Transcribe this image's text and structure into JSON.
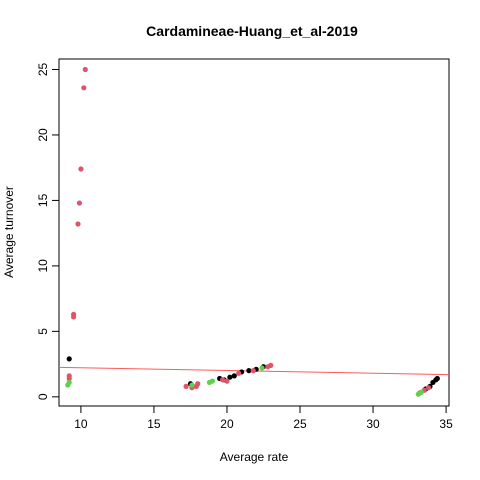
{
  "chart_data": {
    "type": "scatter",
    "title": "Cardamineae-Huang_et_al-2019",
    "xlabel": "Average rate",
    "ylabel": "Average turnover",
    "xlim": [
      8.5,
      35.2
    ],
    "ylim": [
      -0.7,
      25.8
    ],
    "x_ticks": [
      10,
      15,
      20,
      25,
      30,
      35
    ],
    "y_ticks": [
      0,
      5,
      10,
      15,
      20,
      25
    ],
    "grid": false,
    "colors": {
      "black": "#000000",
      "red": "#DF536B",
      "green": "#61D04F",
      "trend": "#FF5A5A"
    },
    "series": [
      {
        "color": "black",
        "points": [
          [
            9.2,
            2.9
          ],
          [
            17.5,
            1.0
          ],
          [
            19.5,
            1.4
          ],
          [
            19.8,
            1.3
          ],
          [
            20.2,
            1.5
          ],
          [
            20.5,
            1.6
          ],
          [
            21.0,
            1.9
          ],
          [
            21.5,
            2.0
          ],
          [
            22.0,
            2.1
          ],
          [
            22.5,
            2.3
          ],
          [
            33.6,
            0.6
          ],
          [
            33.9,
            0.8
          ],
          [
            34.1,
            1.1
          ],
          [
            34.3,
            1.3
          ],
          [
            34.4,
            1.4
          ]
        ]
      },
      {
        "color": "red",
        "points": [
          [
            10.3,
            25.0
          ],
          [
            10.2,
            23.6
          ],
          [
            10.0,
            17.4
          ],
          [
            9.9,
            14.8
          ],
          [
            9.8,
            13.2
          ],
          [
            9.5,
            6.3
          ],
          [
            9.5,
            6.1
          ],
          [
            9.2,
            1.6
          ],
          [
            9.2,
            1.4
          ],
          [
            17.2,
            0.8
          ],
          [
            17.6,
            0.7
          ],
          [
            17.9,
            0.8
          ],
          [
            18.0,
            1.0
          ],
          [
            19.7,
            1.3
          ],
          [
            20.0,
            1.2
          ],
          [
            20.8,
            1.8
          ],
          [
            21.8,
            2.0
          ],
          [
            22.8,
            2.3
          ],
          [
            23.0,
            2.4
          ],
          [
            33.2,
            0.3
          ],
          [
            33.5,
            0.5
          ],
          [
            33.8,
            0.7
          ]
        ]
      },
      {
        "color": "green",
        "points": [
          [
            9.1,
            0.9
          ],
          [
            9.2,
            1.1
          ],
          [
            17.6,
            0.9
          ],
          [
            18.8,
            1.1
          ],
          [
            19.0,
            1.2
          ],
          [
            22.4,
            2.2
          ],
          [
            33.1,
            0.2
          ],
          [
            33.3,
            0.35
          ]
        ]
      }
    ],
    "trend_line": {
      "x": [
        8.5,
        35.2
      ],
      "y": [
        2.25,
        1.7
      ]
    }
  }
}
